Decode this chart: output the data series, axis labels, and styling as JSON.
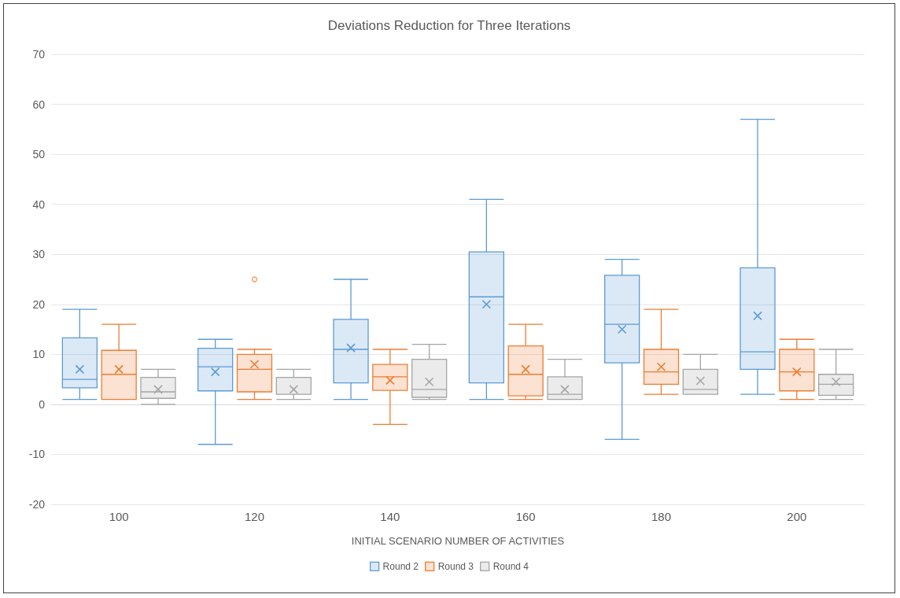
{
  "chart_data": {
    "type": "box",
    "title": "Deviations Reduction for Three Iterations",
    "xlabel": "INITIAL SCENARIO NUMBER OF ACTIVITIES",
    "categories": [
      "100",
      "120",
      "140",
      "160",
      "180",
      "200"
    ],
    "ylim": [
      -20,
      70
    ],
    "yticks": [
      -20,
      -10,
      0,
      10,
      20,
      30,
      40,
      50,
      60,
      70
    ],
    "grid": "y",
    "legend": "bottom",
    "series": [
      {
        "name": "Round 2",
        "color": "#5b9bd5",
        "boxes": [
          {
            "low": 1,
            "q1": 3.3,
            "median": 5,
            "q3": 13.3,
            "high": 19,
            "mean": 7
          },
          {
            "low": -8,
            "q1": 2.7,
            "median": 7.5,
            "q3": 11.2,
            "high": 13,
            "mean": 6.5
          },
          {
            "low": 1,
            "q1": 4.3,
            "median": 11,
            "q3": 17,
            "high": 25,
            "mean": 11.3
          },
          {
            "low": 1,
            "q1": 4.3,
            "median": 21.5,
            "q3": 30.5,
            "high": 41,
            "mean": 20
          },
          {
            "low": -7,
            "q1": 8.3,
            "median": 16,
            "q3": 25.8,
            "high": 29,
            "mean": 15
          },
          {
            "low": 2,
            "q1": 7,
            "median": 10.5,
            "q3": 27.3,
            "high": 57,
            "mean": 17.7
          }
        ]
      },
      {
        "name": "Round 3",
        "color": "#ed7d31",
        "boxes": [
          {
            "low": 1,
            "q1": 1,
            "median": 6,
            "q3": 10.8,
            "high": 16,
            "mean": 7
          },
          {
            "low": 1,
            "q1": 2.5,
            "median": 7,
            "q3": 10,
            "high": 11,
            "mean": 8,
            "outliers": [
              25
            ]
          },
          {
            "low": -4,
            "q1": 2.8,
            "median": 5.5,
            "q3": 8,
            "high": 11,
            "mean": 4.8
          },
          {
            "low": 1,
            "q1": 1.7,
            "median": 6,
            "q3": 11.7,
            "high": 16,
            "mean": 7
          },
          {
            "low": 2,
            "q1": 4,
            "median": 6.5,
            "q3": 11,
            "high": 19,
            "mean": 7.5
          },
          {
            "low": 1,
            "q1": 2.7,
            "median": 6.5,
            "q3": 11,
            "high": 13,
            "mean": 6.5
          }
        ]
      },
      {
        "name": "Round 4",
        "color": "#a5a5a5",
        "boxes": [
          {
            "low": 0,
            "q1": 1.2,
            "median": 2.5,
            "q3": 5.4,
            "high": 7,
            "mean": 3
          },
          {
            "low": 1,
            "q1": 2,
            "median": 2,
            "q3": 5.4,
            "high": 7,
            "mean": 3
          },
          {
            "low": 1,
            "q1": 1.4,
            "median": 3,
            "q3": 9,
            "high": 12,
            "mean": 4.5
          },
          {
            "low": 1,
            "q1": 1,
            "median": 2,
            "q3": 5.5,
            "high": 9,
            "mean": 3
          },
          {
            "low": 2,
            "q1": 2,
            "median": 3,
            "q3": 7,
            "high": 10,
            "mean": 4.7
          },
          {
            "low": 1,
            "q1": 1.8,
            "median": 4,
            "q3": 6,
            "high": 11,
            "mean": 4.5
          }
        ]
      }
    ]
  }
}
